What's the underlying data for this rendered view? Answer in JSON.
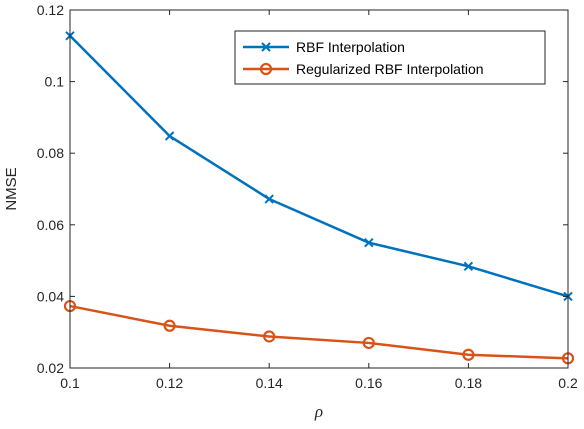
{
  "chart_data": {
    "type": "line",
    "title": "",
    "xlabel": "ρ",
    "ylabel": "NMSE",
    "x": [
      0.1,
      0.12,
      0.14,
      0.16,
      0.18,
      0.2
    ],
    "xlim": [
      0.1,
      0.2
    ],
    "ylim": [
      0.02,
      0.12
    ],
    "xticks": [
      "0.1",
      "0.12",
      "0.14",
      "0.16",
      "0.18",
      "0.2"
    ],
    "yticks": [
      "0.02",
      "0.04",
      "0.06",
      "0.08",
      "0.1",
      "0.12"
    ],
    "grid": false,
    "legend_position": "top-right",
    "series": [
      {
        "name": "RBF Interpolation",
        "values": [
          0.1128,
          0.0848,
          0.0672,
          0.055,
          0.0484,
          0.04
        ],
        "color": "#0072BD",
        "marker": "x"
      },
      {
        "name": "Regularized RBF Interpolation",
        "values": [
          0.0373,
          0.0318,
          0.0288,
          0.027,
          0.0237,
          0.0227
        ],
        "color": "#D95319",
        "marker": "o"
      }
    ]
  }
}
